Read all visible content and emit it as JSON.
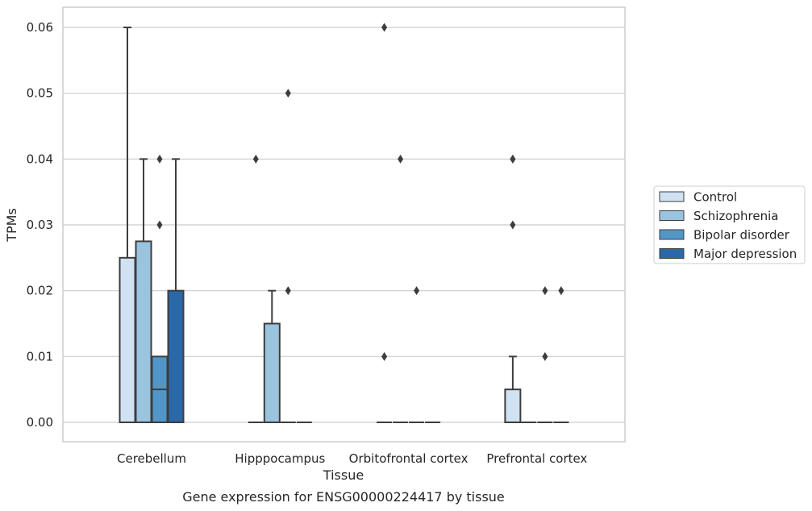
{
  "chart_data": {
    "type": "box",
    "xlabel": "Tissue",
    "ylabel": "TPMs",
    "caption": "Gene expression for ENSG00000224417 by tissue",
    "ylim": [
      -0.003,
      0.063
    ],
    "yticks": [
      "0.00",
      "0.01",
      "0.02",
      "0.03",
      "0.04",
      "0.05",
      "0.06"
    ],
    "yticks_values": [
      0,
      0.01,
      0.02,
      0.03,
      0.04,
      0.05,
      0.06
    ],
    "grid": true,
    "legend_position": "right",
    "categories": [
      "Cerebellum",
      "Hipppocampus",
      "Orbitofrontal cortex",
      "Prefrontal cortex"
    ],
    "series": [
      {
        "name": "Control",
        "color": "#d0e1f2",
        "boxes": [
          {
            "min": 0,
            "q1": 0,
            "median": 0,
            "q3": 0.025,
            "max": 0.06,
            "outliers": []
          },
          {
            "min": 0,
            "q1": 0,
            "median": 0,
            "q3": 0,
            "max": 0,
            "outliers": [
              0.04
            ]
          },
          {
            "min": 0,
            "q1": 0,
            "median": 0,
            "q3": 0,
            "max": 0,
            "outliers": [
              0.01,
              0.06
            ]
          },
          {
            "min": 0,
            "q1": 0,
            "median": 0,
            "q3": 0.005,
            "max": 0.01,
            "outliers": [
              0.03,
              0.04,
              0.04
            ]
          }
        ]
      },
      {
        "name": "Schizophrenia",
        "color": "#9ac3de",
        "boxes": [
          {
            "min": 0,
            "q1": 0,
            "median": 0,
            "q3": 0.0275,
            "max": 0.04,
            "outliers": []
          },
          {
            "min": 0,
            "q1": 0,
            "median": 0,
            "q3": 0.015,
            "max": 0.02,
            "outliers": []
          },
          {
            "min": 0,
            "q1": 0,
            "median": 0,
            "q3": 0,
            "max": 0,
            "outliers": [
              0.04
            ]
          },
          {
            "min": 0,
            "q1": 0,
            "median": 0,
            "q3": 0,
            "max": 0,
            "outliers": []
          }
        ]
      },
      {
        "name": "Bipolar disorder",
        "color": "#5296c8",
        "boxes": [
          {
            "min": 0,
            "q1": 0,
            "median": 0.005,
            "q3": 0.01,
            "max": 0.01,
            "outliers": [
              0.03,
              0.04
            ]
          },
          {
            "min": 0,
            "q1": 0,
            "median": 0,
            "q3": 0,
            "max": 0,
            "outliers": [
              0.02,
              0.05
            ]
          },
          {
            "min": 0,
            "q1": 0,
            "median": 0,
            "q3": 0,
            "max": 0,
            "outliers": [
              0.02
            ]
          },
          {
            "min": 0,
            "q1": 0,
            "median": 0,
            "q3": 0,
            "max": 0,
            "outliers": [
              0.01,
              0.02
            ]
          }
        ]
      },
      {
        "name": "Major depression",
        "color": "#2a68a7",
        "boxes": [
          {
            "min": 0,
            "q1": 0,
            "median": 0,
            "q3": 0.02,
            "max": 0.04,
            "outliers": []
          },
          {
            "min": 0,
            "q1": 0,
            "median": 0,
            "q3": 0,
            "max": 0,
            "outliers": []
          },
          {
            "min": 0,
            "q1": 0,
            "median": 0,
            "q3": 0,
            "max": 0,
            "outliers": []
          },
          {
            "min": 0,
            "q1": 0,
            "median": 0,
            "q3": 0,
            "max": 0,
            "outliers": [
              0.02
            ]
          }
        ]
      }
    ]
  }
}
